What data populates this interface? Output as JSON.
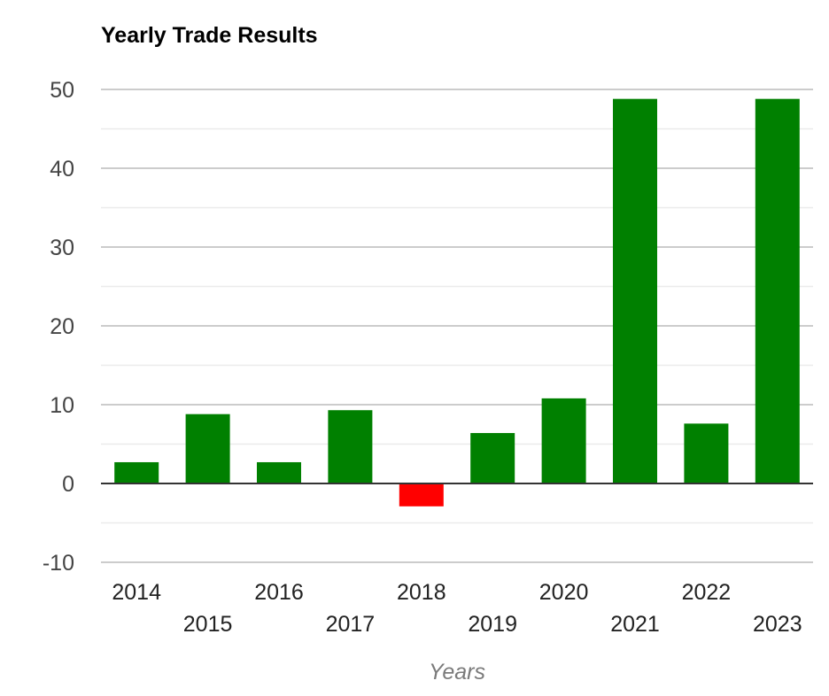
{
  "chart_data": {
    "type": "bar",
    "title": "Yearly Trade Results",
    "xlabel": "Years",
    "ylabel": "",
    "categories": [
      "2014",
      "2015",
      "2016",
      "2017",
      "2018",
      "2019",
      "2020",
      "2021",
      "2022",
      "2023"
    ],
    "values": [
      2.7,
      8.8,
      2.7,
      9.3,
      -2.9,
      6.4,
      10.8,
      48.8,
      7.6,
      48.8
    ],
    "ylim": [
      -10,
      50
    ],
    "yticks": [
      -10,
      0,
      10,
      20,
      30,
      40,
      50
    ],
    "grid": true,
    "legend": "none",
    "colors": {
      "positive": "#008000",
      "negative": "#ff0000",
      "gridline": "#cccccc",
      "minor_gridline": "#ebebeb",
      "zero_line": "#333333"
    }
  }
}
